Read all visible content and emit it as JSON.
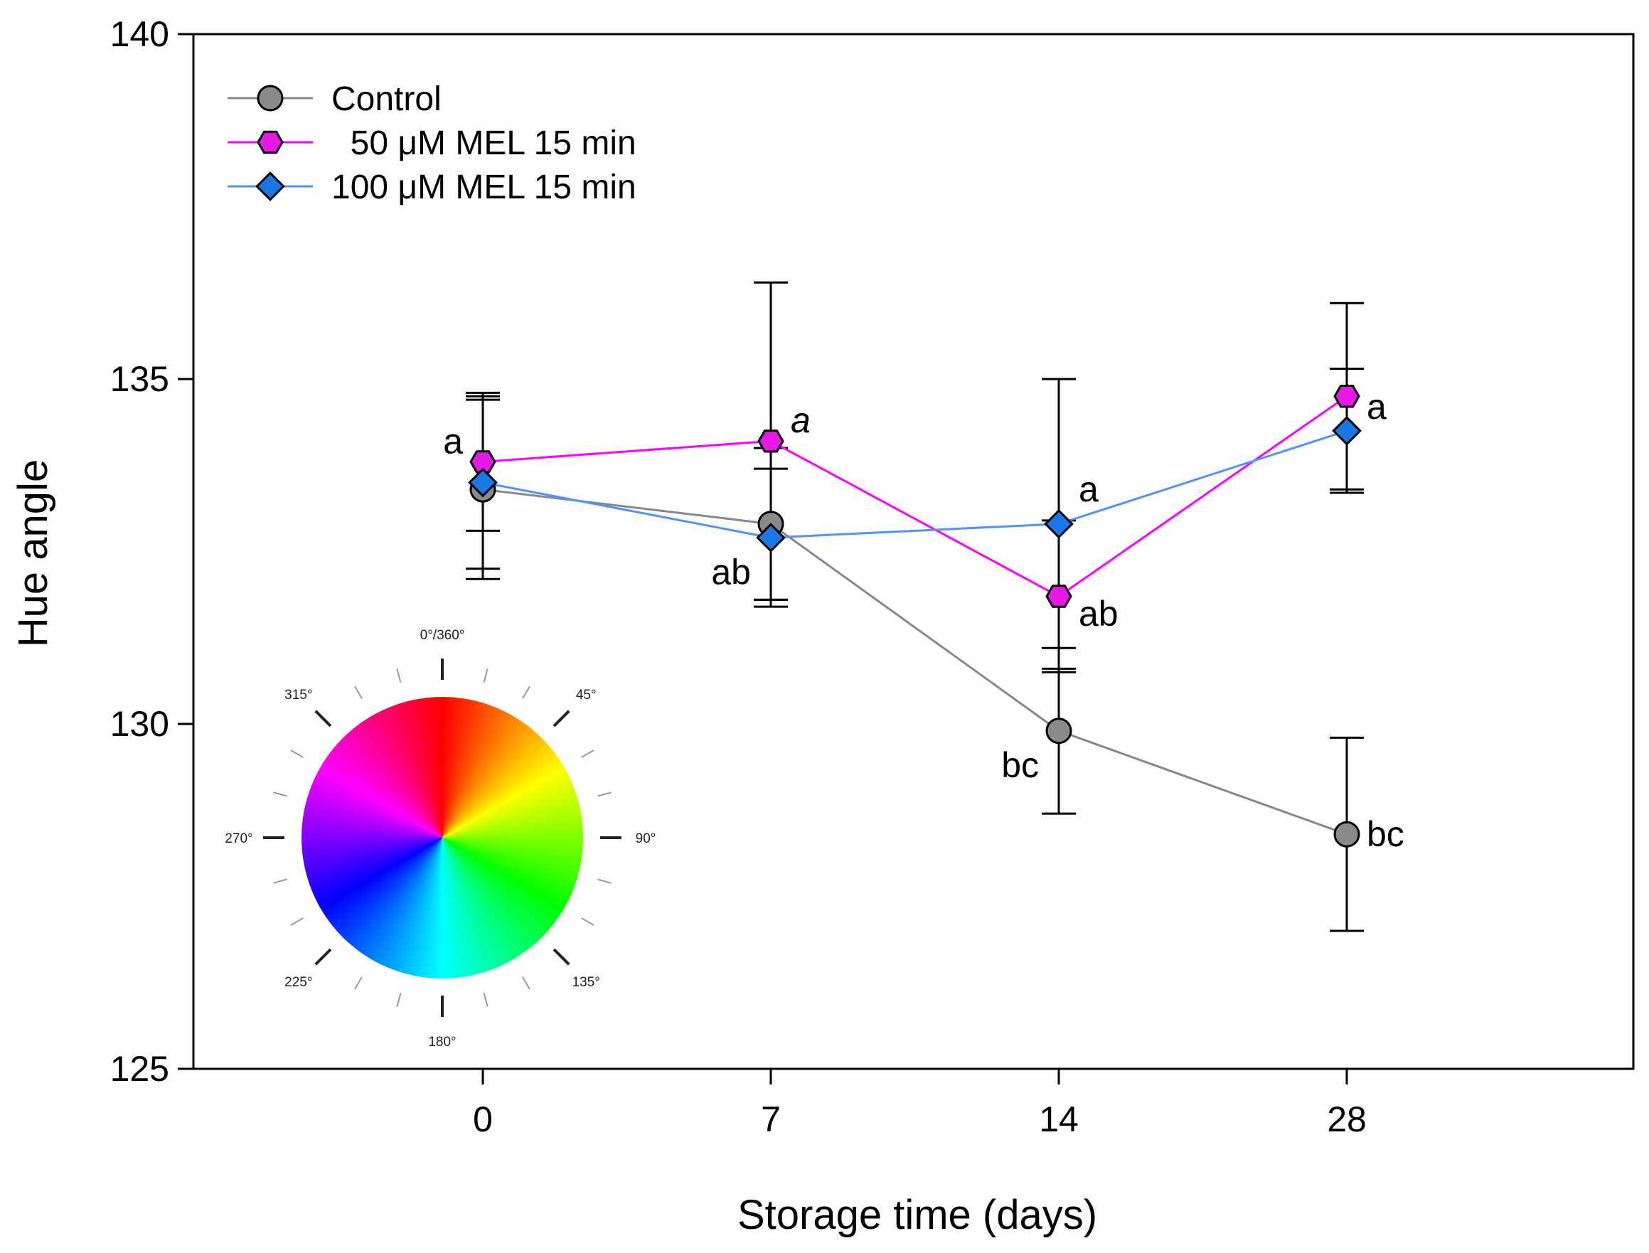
{
  "chart_data": {
    "type": "line",
    "xlabel": "Storage time (days)",
    "ylabel": "Hue angle",
    "categories": [
      "0",
      "7",
      "14",
      "28"
    ],
    "ylim": [
      125,
      140
    ],
    "yticks": [
      125,
      130,
      135,
      140
    ],
    "legend_position": "top-left",
    "series": [
      {
        "name": "Control",
        "color": "#888888",
        "fill": "#8a8a8a",
        "marker": "circle",
        "values": [
          133.4,
          132.9,
          129.9,
          128.4
        ],
        "err": [
          1.3,
          1.1,
          1.2,
          1.4
        ]
      },
      {
        "name": "  50 μM MEL 15 min",
        "color": "#ff00ff",
        "fill": "#e619e6",
        "marker": "hexagon",
        "values": [
          133.8,
          134.1,
          131.85,
          134.75
        ],
        "err": [
          1.0,
          2.3,
          1.1,
          1.35
        ]
      },
      {
        "name": "100 μM MEL 15 min",
        "color": "#4d94ff",
        "fill": "#1a78e6",
        "marker": "diamond",
        "values": [
          133.5,
          132.7,
          132.9,
          134.25
        ],
        "err": [
          1.25,
          1.0,
          2.1,
          0.9
        ]
      }
    ],
    "annotations": [
      {
        "text": "a",
        "x": 0,
        "y": 134.1,
        "italic": false,
        "anchor": "end"
      },
      {
        "text": "a",
        "x": 1,
        "y": 134.4,
        "italic": true,
        "anchor": "start"
      },
      {
        "text": "ab",
        "x": 1,
        "y": 132.2,
        "italic": false,
        "anchor": "end"
      },
      {
        "text": "a",
        "x": 2,
        "y": 133.4,
        "italic": false,
        "anchor": "start"
      },
      {
        "text": "ab",
        "x": 2,
        "y": 131.6,
        "italic": false,
        "anchor": "start"
      },
      {
        "text": "bc",
        "x": 2,
        "y": 129.4,
        "italic": false,
        "anchor": "end"
      },
      {
        "text": "a",
        "x": 3,
        "y": 134.6,
        "italic": false,
        "anchor": "start"
      },
      {
        "text": "bc",
        "x": 3,
        "y": 128.4,
        "italic": false,
        "anchor": "start"
      }
    ]
  },
  "inset": {
    "name": "hue color wheel",
    "labels": [
      "0°/360°",
      "45°",
      "90°",
      "135°",
      "180°",
      "225°",
      "270°",
      "315°"
    ],
    "label_angles": [
      0,
      45,
      90,
      135,
      180,
      225,
      270,
      315
    ]
  }
}
